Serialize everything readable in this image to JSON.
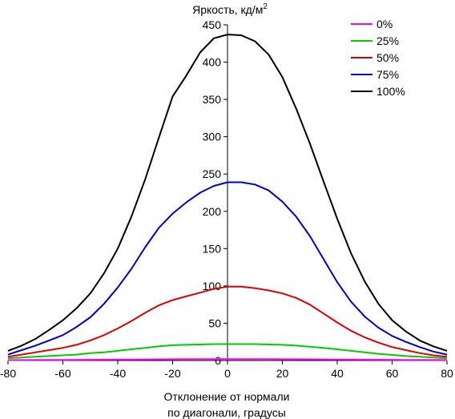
{
  "chart_data": {
    "type": "line",
    "title": "Яркость, кд/м",
    "title_superscript": "2",
    "xlabel_line1": "Отклонение от нормали",
    "xlabel_line2": "по диагонали, градусы",
    "xlim": [
      -80,
      80
    ],
    "ylim": [
      0,
      450
    ],
    "xticks": [
      -80,
      -60,
      -40,
      -20,
      0,
      20,
      40,
      60,
      80
    ],
    "yticks": [
      0,
      50,
      100,
      150,
      200,
      250,
      300,
      350,
      400,
      450
    ],
    "grid": false,
    "legend_position": "top-right",
    "x": [
      -80,
      -75,
      -70,
      -65,
      -60,
      -55,
      -50,
      -45,
      -40,
      -35,
      -30,
      -25,
      -20,
      -15,
      -10,
      -5,
      0,
      5,
      10,
      15,
      20,
      25,
      30,
      35,
      40,
      45,
      50,
      55,
      60,
      65,
      70,
      75,
      80
    ],
    "series": [
      {
        "name": "0%",
        "color": "#ff00ff",
        "values": [
          0.5,
          0.6,
          0.7,
          0.8,
          0.9,
          1.0,
          1.1,
          1.2,
          1.3,
          1.4,
          1.5,
          1.6,
          1.7,
          1.8,
          1.8,
          1.8,
          1.8,
          1.8,
          1.8,
          1.8,
          1.7,
          1.7,
          1.6,
          1.5,
          1.4,
          1.3,
          1.2,
          1.1,
          1.0,
          0.9,
          0.8,
          0.7,
          0.6
        ]
      },
      {
        "name": "25%",
        "color": "#00cc00",
        "values": [
          3,
          4,
          5,
          6,
          7,
          8,
          10,
          11,
          13,
          15,
          17,
          19,
          20.5,
          21,
          21.5,
          22,
          22,
          22,
          22,
          21.5,
          21,
          20,
          18.5,
          17,
          15,
          13,
          11,
          9,
          7.5,
          6,
          5,
          4,
          3
        ]
      },
      {
        "name": "50%",
        "color": "#dd0000",
        "values": [
          5,
          8,
          11,
          14,
          17,
          21,
          27,
          34,
          43,
          53,
          64,
          74,
          81,
          86,
          91,
          96,
          99,
          99,
          97,
          94,
          90,
          84,
          75,
          63,
          51,
          40,
          31,
          24,
          18,
          14,
          10,
          7,
          5
        ]
      },
      {
        "name": "75%",
        "color": "#0000cc",
        "values": [
          8,
          14,
          20,
          27,
          34,
          45,
          58,
          76,
          98,
          123,
          152,
          178,
          197,
          212,
          225,
          234,
          239,
          239,
          236,
          228,
          213,
          193,
          167,
          136,
          105,
          79,
          59,
          44,
          33,
          25,
          18,
          12,
          8
        ]
      },
      {
        "name": "100%",
        "color": "#000000",
        "values": [
          13,
          20,
          29,
          41,
          54,
          70,
          90,
          117,
          150,
          193,
          243,
          299,
          354,
          382,
          413,
          432,
          437,
          436,
          428,
          410,
          380,
          338,
          291,
          240,
          190,
          144,
          106,
          76,
          54,
          39,
          27,
          19,
          13
        ]
      }
    ]
  }
}
